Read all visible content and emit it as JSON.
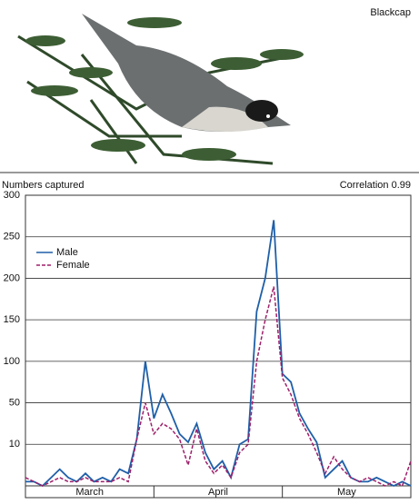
{
  "chart_data": {
    "type": "line",
    "species": "Blackcap",
    "title": "Numbers captured",
    "annotation": "Correlation 0.99",
    "months": [
      "March",
      "April",
      "May"
    ],
    "ylim": [
      0,
      300
    ],
    "yticks": [
      10,
      50,
      100,
      150,
      200,
      250,
      300
    ],
    "scale": "piecewise",
    "grid": true,
    "legend": "upper left",
    "series": [
      {
        "name": "Male",
        "color": "#1f5fa8",
        "values": [
          1,
          1,
          0,
          2,
          4,
          2,
          1,
          3,
          1,
          2,
          1,
          4,
          3,
          15,
          100,
          35,
          60,
          40,
          20,
          12,
          30,
          8,
          4,
          6,
          2,
          10,
          15,
          160,
          200,
          270,
          85,
          75,
          40,
          25,
          12,
          2,
          4,
          6,
          2,
          1,
          1,
          2,
          1,
          0,
          1,
          0
        ]
      },
      {
        "name": "Female",
        "color": "#9e1f6a",
        "values": [
          2,
          1,
          0,
          1,
          2,
          1,
          1,
          2,
          1,
          1,
          1,
          2,
          1,
          15,
          50,
          20,
          30,
          25,
          15,
          5,
          25,
          6,
          3,
          5,
          2,
          8,
          10,
          100,
          150,
          190,
          80,
          60,
          35,
          20,
          8,
          3,
          7,
          4,
          2,
          1,
          2,
          1,
          0,
          1,
          0,
          6
        ]
      }
    ]
  }
}
